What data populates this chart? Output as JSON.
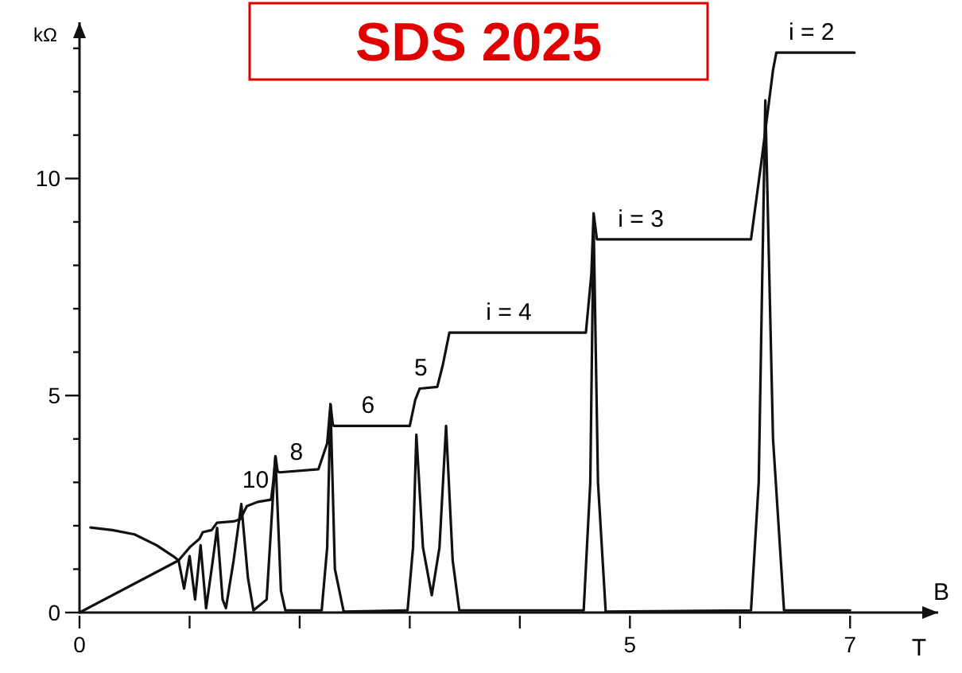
{
  "chart_data": {
    "type": "line",
    "title": "SDS 2025",
    "xlabel": "B",
    "ylabel": "kΩ",
    "annotations": [
      "T",
      {
        "text": "10",
        "x": 1.6,
        "y": 2.58
      },
      {
        "text": "8",
        "x": 1.97,
        "y": 3.23
      },
      {
        "text": "6",
        "x": 2.62,
        "y": 4.3
      },
      {
        "text": "5",
        "x": 3.1,
        "y": 5.16
      },
      {
        "text": "i = 4",
        "x": 3.9,
        "y": 6.45
      },
      {
        "text": "i = 3",
        "x": 5.1,
        "y": 8.6
      },
      {
        "text": "i = 2",
        "x": 6.65,
        "y": 12.9
      }
    ],
    "xlim": [
      0,
      7.8
    ],
    "ylim": [
      0,
      13.6
    ],
    "xticks": [
      0,
      {
        "value": 1,
        "label": null
      },
      {
        "value": 2,
        "label": null
      },
      {
        "value": 3,
        "label": null
      },
      {
        "value": 4,
        "label": null
      },
      5,
      {
        "value": 6,
        "label": null
      },
      7
    ],
    "yticks": [
      0,
      {
        "value": 1,
        "label": null
      },
      {
        "value": 2,
        "label": null
      },
      {
        "value": 3,
        "label": null
      },
      {
        "value": 4,
        "label": null
      },
      5,
      {
        "value": 6,
        "label": null
      },
      {
        "value": 7,
        "label": null
      },
      {
        "value": 8,
        "label": null
      },
      {
        "value": 9,
        "label": null
      },
      10,
      {
        "value": 11,
        "label": null
      },
      {
        "value": 12,
        "label": null
      },
      {
        "value": 13,
        "label": null
      }
    ],
    "marker": "none",
    "line_style": "solid",
    "series": [
      {
        "color": "#111111",
        "x": [
          0,
          0.9,
          1.0,
          1.09,
          1.12,
          1.2,
          1.25,
          1.4,
          1.46,
          1.52,
          1.62,
          1.74,
          1.76,
          1.78,
          1.8,
          1.82,
          2.17,
          2.25,
          2.28,
          2.3,
          2.31,
          3.0,
          3.05,
          3.09,
          3.25,
          3.3,
          3.36,
          4.6,
          4.65,
          4.67,
          4.7,
          6.1,
          6.2,
          6.3,
          6.33,
          7.04
        ],
        "values": [
          0,
          1.2,
          1.5,
          1.7,
          1.85,
          1.9,
          2.07,
          2.1,
          2.15,
          2.45,
          2.55,
          2.6,
          3.0,
          3.6,
          3.25,
          3.23,
          3.3,
          3.9,
          4.8,
          4.35,
          4.3,
          4.3,
          4.9,
          5.16,
          5.2,
          5.7,
          6.45,
          6.45,
          7.8,
          9.2,
          8.6,
          8.6,
          10.5,
          12.5,
          12.9,
          12.9
        ]
      },
      {
        "color": "#111111",
        "x": [
          0.1,
          0.3,
          0.5,
          0.7,
          0.85,
          0.9,
          0.95,
          1.0,
          1.05,
          1.1,
          1.15,
          1.2,
          1.25,
          1.3,
          1.33,
          1.4,
          1.47,
          1.53,
          1.58,
          1.7,
          1.78,
          1.83,
          1.87,
          2.2,
          2.25,
          2.28,
          2.32,
          2.4,
          2.98,
          3.03,
          3.06,
          3.12,
          3.2,
          3.27,
          3.33,
          3.39,
          3.45,
          4.58,
          4.64,
          4.67,
          4.71,
          4.78,
          6.1,
          6.17,
          6.23,
          6.3,
          6.4,
          7.0
        ],
        "values": [
          1.96,
          1.9,
          1.8,
          1.55,
          1.3,
          1.2,
          0.55,
          1.3,
          0.3,
          1.55,
          0.1,
          1.0,
          1.95,
          0.3,
          0.1,
          1.2,
          2.5,
          0.8,
          0.05,
          0.3,
          3.6,
          0.5,
          0.05,
          0.05,
          1.5,
          4.8,
          1.0,
          0.02,
          0.05,
          1.5,
          4.1,
          1.5,
          0.4,
          1.5,
          4.3,
          1.2,
          0.05,
          0.05,
          3.0,
          9.0,
          3.0,
          0.02,
          0.05,
          3.0,
          11.8,
          4.0,
          0.05,
          0.05
        ]
      }
    ]
  }
}
